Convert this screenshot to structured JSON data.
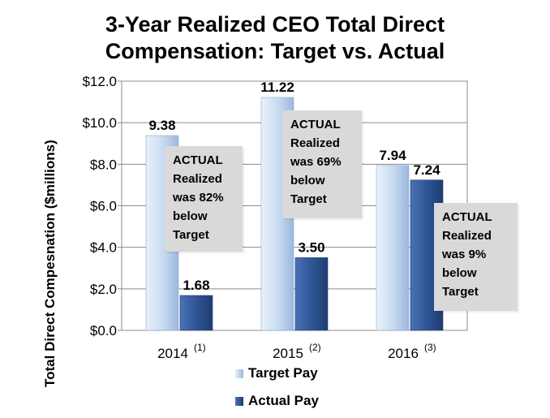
{
  "chart_data": {
    "type": "bar",
    "title_lines": [
      "3-Year Realized CEO Total Direct",
      "Compensation: Target vs. Actual"
    ],
    "ylabel": "Total Direct Compesnation ($millions)",
    "ylim": [
      0,
      12
    ],
    "y_ticks": [
      "$0.0",
      "$2.0",
      "$4.0",
      "$6.0",
      "$8.0",
      "$10.0",
      "$12.0"
    ],
    "categories": [
      {
        "label": "2014",
        "note": "(1)"
      },
      {
        "label": "2015",
        "note": "(2)"
      },
      {
        "label": "2016",
        "note": "(3)"
      }
    ],
    "series": [
      {
        "name": "Target Pay",
        "values": [
          9.38,
          11.22,
          7.94
        ],
        "labels": [
          "9.38",
          "11.22",
          "7.94"
        ],
        "color": "#c6d9f1"
      },
      {
        "name": "Actual Pay",
        "values": [
          1.68,
          3.5,
          7.24
        ],
        "labels": [
          "1.68",
          "3.50",
          "7.24"
        ],
        "color": "#2f5597"
      }
    ],
    "annotations": [
      {
        "lines": [
          "ACTUAL",
          "Realized",
          "was 82%",
          "below",
          "Target"
        ]
      },
      {
        "lines": [
          "ACTUAL",
          "Realized",
          "was 69%",
          "below",
          "Target"
        ]
      },
      {
        "lines": [
          "ACTUAL",
          "Realized",
          "was 9%",
          "below",
          "Target"
        ]
      }
    ],
    "legend": [
      "Target Pay",
      "Actual Pay"
    ],
    "legend_position": "bottom"
  }
}
